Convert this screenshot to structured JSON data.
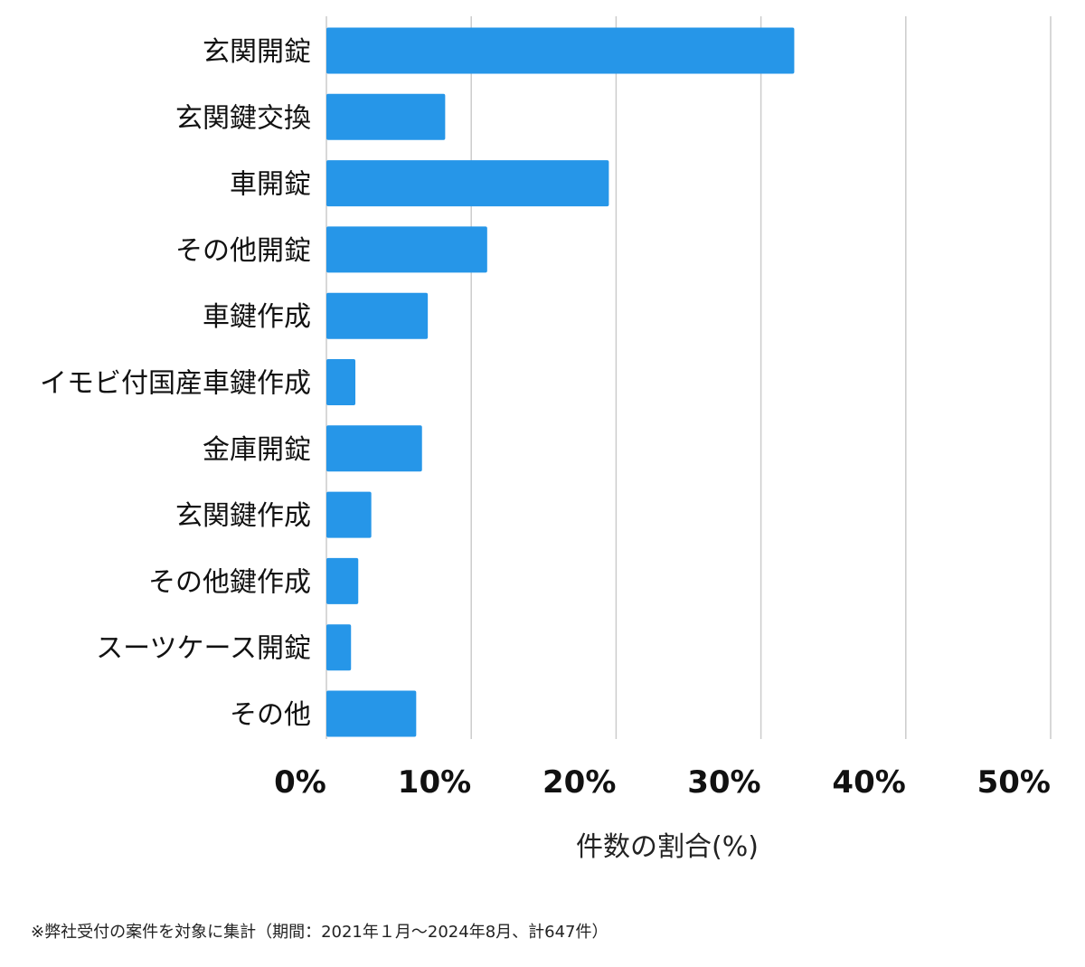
{
  "chart_data": {
    "type": "bar",
    "orientation": "horizontal",
    "categories": [
      "玄関開錠",
      "玄関鍵交換",
      "車開錠",
      "その他開錠",
      "車鍵作成",
      "イモビ付国産車鍵作成",
      "金庫開錠",
      "玄関鍵作成",
      "その他鍵作成",
      "スーツケース開錠",
      "その他"
    ],
    "values": [
      32.3,
      8.2,
      19.5,
      11.1,
      7.0,
      2.0,
      6.6,
      3.1,
      2.2,
      1.7,
      6.2
    ],
    "xlim": [
      0,
      50
    ],
    "x_ticks": [
      0,
      10,
      20,
      30,
      40,
      50
    ],
    "x_tick_labels": [
      "0%",
      "10%",
      "20%",
      "30%",
      "40%",
      "50%"
    ],
    "xlabel": "件数の割合(%)",
    "ylabel": "",
    "title": "",
    "grid": "vertical",
    "bar_color": "#2696e8",
    "grid_color": "#cccccc"
  },
  "footnote": "※弊社受付の案件を対象に集計（期間：2021年１月～2024年8月、計647件）"
}
